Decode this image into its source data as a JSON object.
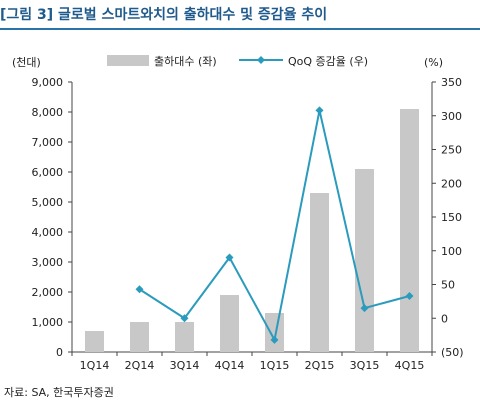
{
  "header": {
    "title": "[그림 3] 글로벌 스마트와치의 출하대수 및 증감율 추이"
  },
  "footer": {
    "source": "자료: SA, 한국투자증권"
  },
  "colors": {
    "title": "#1f5a8c",
    "rule": "#2a73a8",
    "bar": "#c8c8c8",
    "line": "#2b9bbd"
  },
  "chart_data": {
    "type": "bar+line",
    "categories": [
      "1Q14",
      "2Q14",
      "3Q14",
      "4Q14",
      "1Q15",
      "2Q15",
      "3Q15",
      "4Q15"
    ],
    "left_axis": {
      "unit_label": "(천대)",
      "ylim": [
        0,
        9000
      ],
      "ticks": [
        "0",
        "1,000",
        "2,000",
        "3,000",
        "4,000",
        "5,000",
        "6,000",
        "7,000",
        "8,000",
        "9,000"
      ]
    },
    "right_axis": {
      "unit_label": "(%)",
      "ylim": [
        -50,
        350
      ],
      "ticks": [
        "(50)",
        "0",
        "50",
        "100",
        "150",
        "200",
        "250",
        "300",
        "350"
      ]
    },
    "series": [
      {
        "name": "출하대수 (좌)",
        "kind": "bar",
        "axis": "left",
        "values": [
          700,
          1000,
          1000,
          1900,
          1300,
          5300,
          6100,
          8100
        ]
      },
      {
        "name": "QoQ 증감율 (우)",
        "kind": "line",
        "axis": "right",
        "values": [
          null,
          43,
          0,
          90,
          -32,
          308,
          15,
          33
        ]
      }
    ],
    "legend_position": "top",
    "grid": false
  }
}
